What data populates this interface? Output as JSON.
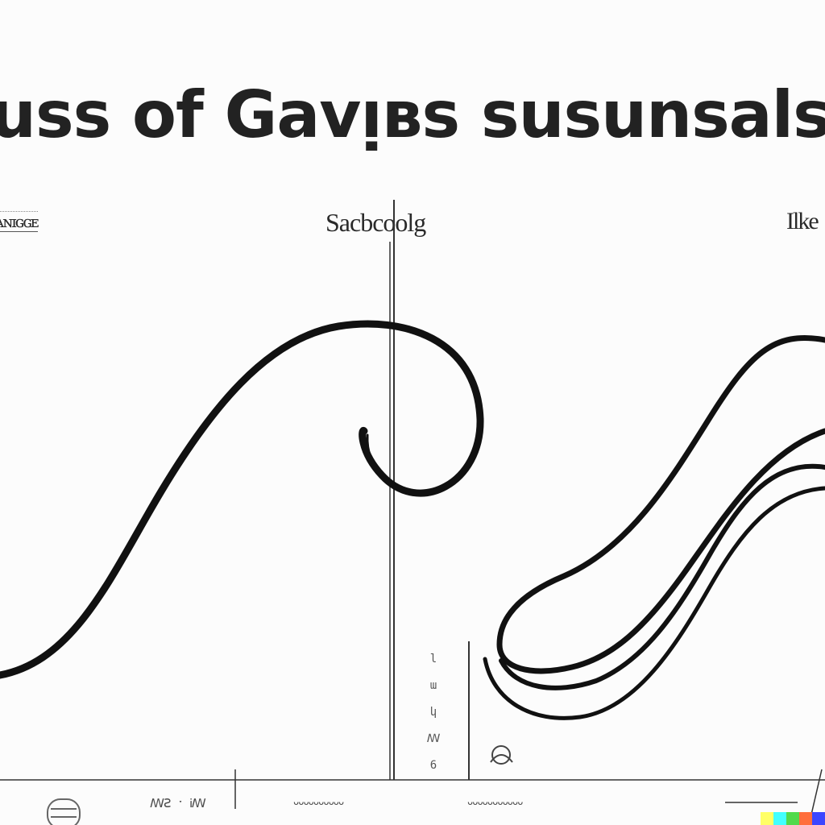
{
  "title": "uss of Gavᴉʙs susunsalsung",
  "panel_labels": {
    "left": "ᴀɴɪɢɢᴇ",
    "center": "Sacbcoolg",
    "right": "Ilke"
  },
  "side_ticks": [
    "l",
    "ɯ",
    "կ",
    "ꟿ",
    "6"
  ],
  "footer": {
    "text_1": "ꟿꙄ ˑ Ꭵꟿ",
    "text_2": "ᴗᴗᴗᴗᴗᴗᴗᴗᴗᴗ",
    "text_3": "ᴗᴗᴗᴗᴗᴗᴗᴗᴗᴗᴗ"
  },
  "palette": {
    "ink": "#111111",
    "axis": "#333333",
    "watermark": [
      "#ffff66",
      "#42ffff",
      "#51da4c",
      "#ff6e3c",
      "#3c46ff"
    ]
  }
}
